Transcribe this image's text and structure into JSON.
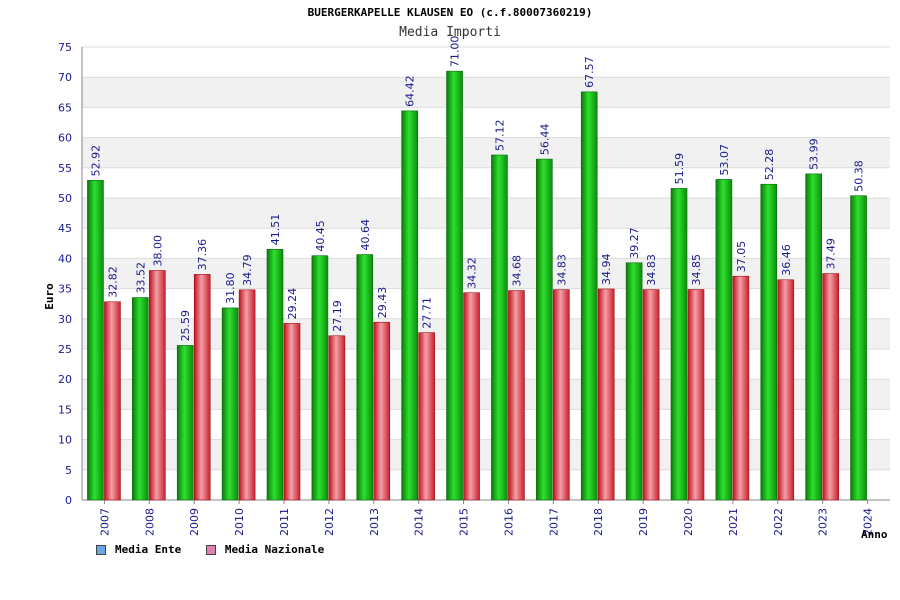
{
  "chart_data": {
    "type": "bar",
    "title": "BUERGERKAPELLE KLAUSEN EO (c.f.80007360219)",
    "subtitle": "Media Importi",
    "xlabel": "Anno",
    "ylabel": "Euro",
    "ylim": [
      0,
      75
    ],
    "yticks": [
      0,
      5,
      10,
      15,
      20,
      25,
      30,
      35,
      40,
      45,
      50,
      55,
      60,
      65,
      70,
      75
    ],
    "grid": true,
    "legend_position": "bottom-left",
    "categories": [
      "2007",
      "2008",
      "2009",
      "2010",
      "2011",
      "2012",
      "2013",
      "2014",
      "2015",
      "2016",
      "2017",
      "2018",
      "2019",
      "2020",
      "2021",
      "2022",
      "2023",
      "2024"
    ],
    "series": [
      {
        "name": "Media Ente",
        "color": "#1fb71f",
        "legend_color": "#6aa6ea",
        "values": [
          52.92,
          33.52,
          25.59,
          31.8,
          41.51,
          40.45,
          40.64,
          64.42,
          71.0,
          57.12,
          56.44,
          67.57,
          39.27,
          51.59,
          53.07,
          52.28,
          53.99,
          50.38
        ],
        "labels": [
          "52.92",
          "33.52",
          "25.59",
          "31.80",
          "41.51",
          "40.45",
          "40.64",
          "64.42",
          "71.00",
          "57.12",
          "56.44",
          "67.57",
          "39.27",
          "51.59",
          "53.07",
          "52.28",
          "53.99",
          "50.38"
        ]
      },
      {
        "name": "Media Nazionale",
        "color": "#e0303a",
        "legend_color": "#e07fb0",
        "values": [
          32.82,
          38.0,
          37.36,
          34.79,
          29.24,
          27.19,
          29.43,
          27.71,
          34.32,
          34.68,
          34.83,
          34.94,
          34.83,
          34.85,
          37.05,
          36.46,
          37.49,
          null
        ],
        "labels": [
          "32.82",
          "38.00",
          "37.36",
          "34.79",
          "29.24",
          "27.19",
          "29.43",
          "27.71",
          "34.32",
          "34.68",
          "34.83",
          "34.94",
          "34.83",
          "34.85",
          "37.05",
          "36.46",
          "37.49",
          ""
        ]
      }
    ]
  }
}
